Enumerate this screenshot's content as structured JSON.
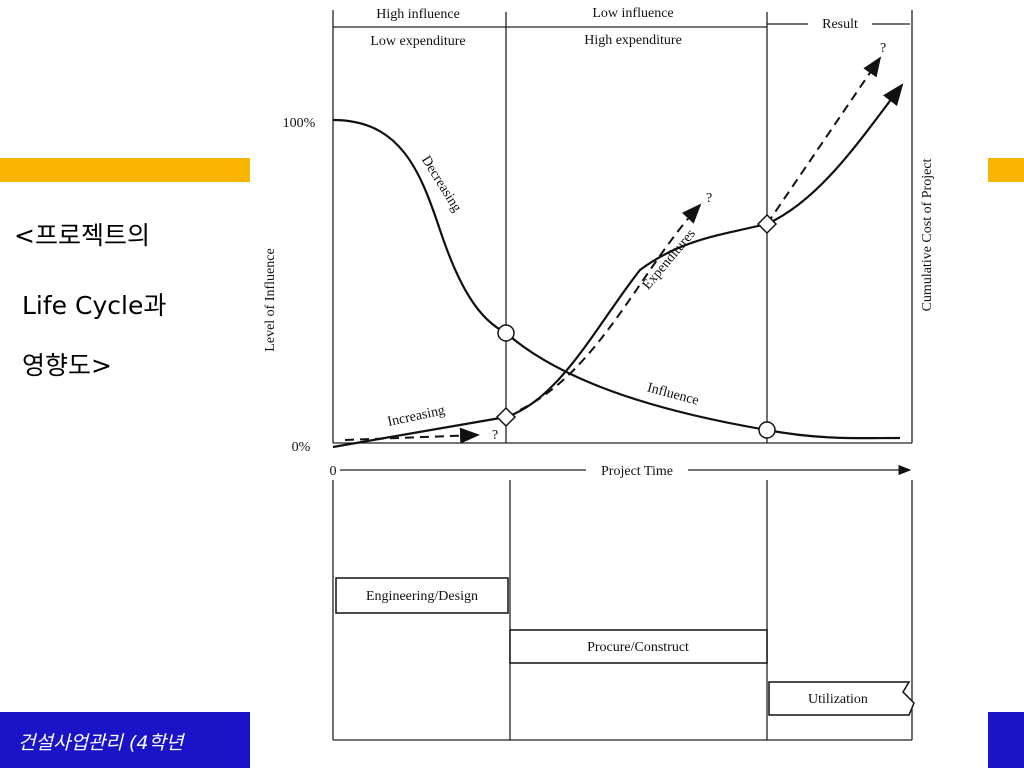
{
  "slide": {
    "caption": [
      "<프로젝트의",
      "Life Cycle과",
      "영향도>"
    ],
    "footer": "건설사업관리 (4학년"
  },
  "diagram": {
    "phases": [
      {
        "top": "High influence",
        "bottom": "Low expenditure"
      },
      {
        "top": "Low influence",
        "bottom": "High expenditure"
      },
      {
        "top": "Result"
      }
    ],
    "y_axis_left": "Level of Influence",
    "y_axis_right": "Cumulative Cost of Project",
    "y_labels": [
      "100%",
      "0%"
    ],
    "x_origin": "0",
    "x_axis": "Project Time",
    "curve_labels": [
      "Decreasing",
      "Expenditures",
      "Influence",
      "Increasing"
    ],
    "question_marks": [
      "?",
      "?",
      "?"
    ],
    "stages": [
      "Engineering/Design",
      "Procure/Construct",
      "Utilization"
    ]
  }
}
